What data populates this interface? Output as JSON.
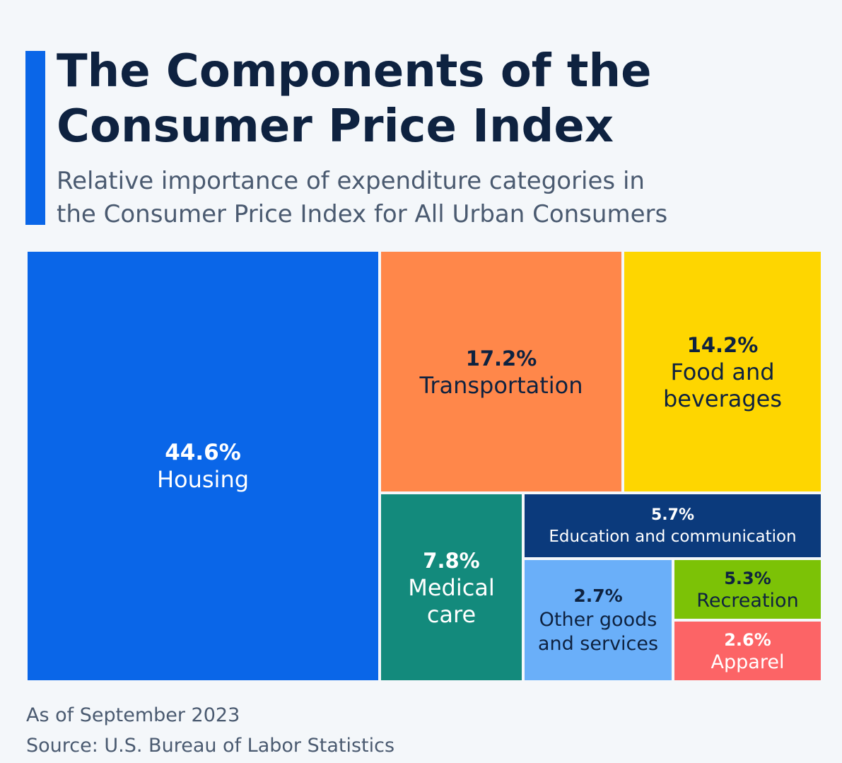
{
  "title_line1": "The Components of the",
  "title_line2": "Consumer Price Index",
  "subtitle_line1": "Relative importance of expenditure categories in",
  "subtitle_line2": "the Consumer Price Index for All Urban Consumers",
  "footer": {
    "note": "As of September 2023",
    "source": "Source: U.S. Bureau of Labor Statistics"
  },
  "colors": {
    "accent": "#0a66e8",
    "title": "#0e2240",
    "background": "#f4f7fa"
  },
  "chart_data": {
    "type": "treemap",
    "title": "The Components of the Consumer Price Index",
    "unit": "%",
    "items": [
      {
        "name": "Housing",
        "value": 44.6,
        "value_label": "44.6%",
        "label_lines": [
          "Housing"
        ],
        "color": "#0a66e8",
        "text_color": "#ffffff"
      },
      {
        "name": "Transportation",
        "value": 17.2,
        "value_label": "17.2%",
        "label_lines": [
          "Transportation"
        ],
        "color": "#ff874a",
        "text_color": "#0e2240"
      },
      {
        "name": "Food and beverages",
        "value": 14.2,
        "value_label": "14.2%",
        "label_lines": [
          "Food and",
          "beverages"
        ],
        "color": "#fed600",
        "text_color": "#0e2240"
      },
      {
        "name": "Medical care",
        "value": 7.8,
        "value_label": "7.8%",
        "label_lines": [
          "Medical",
          "care"
        ],
        "color": "#138a7c",
        "text_color": "#ffffff"
      },
      {
        "name": "Education and communication",
        "value": 5.7,
        "value_label": "5.7%",
        "label_lines": [
          "Education and communication"
        ],
        "color": "#0b3a7c",
        "text_color": "#ffffff"
      },
      {
        "name": "Recreation",
        "value": 5.3,
        "value_label": "5.3%",
        "label_lines": [
          "Recreation"
        ],
        "color": "#7cc206",
        "text_color": "#0e2240"
      },
      {
        "name": "Other goods and services",
        "value": 2.7,
        "value_label": "2.7%",
        "label_lines": [
          "Other goods",
          "and services"
        ],
        "color": "#6aaff9",
        "text_color": "#0e2240"
      },
      {
        "name": "Apparel",
        "value": 2.6,
        "value_label": "2.6%",
        "label_lines": [
          "Apparel"
        ],
        "color": "#fc6466",
        "text_color": "#ffffff"
      }
    ]
  }
}
